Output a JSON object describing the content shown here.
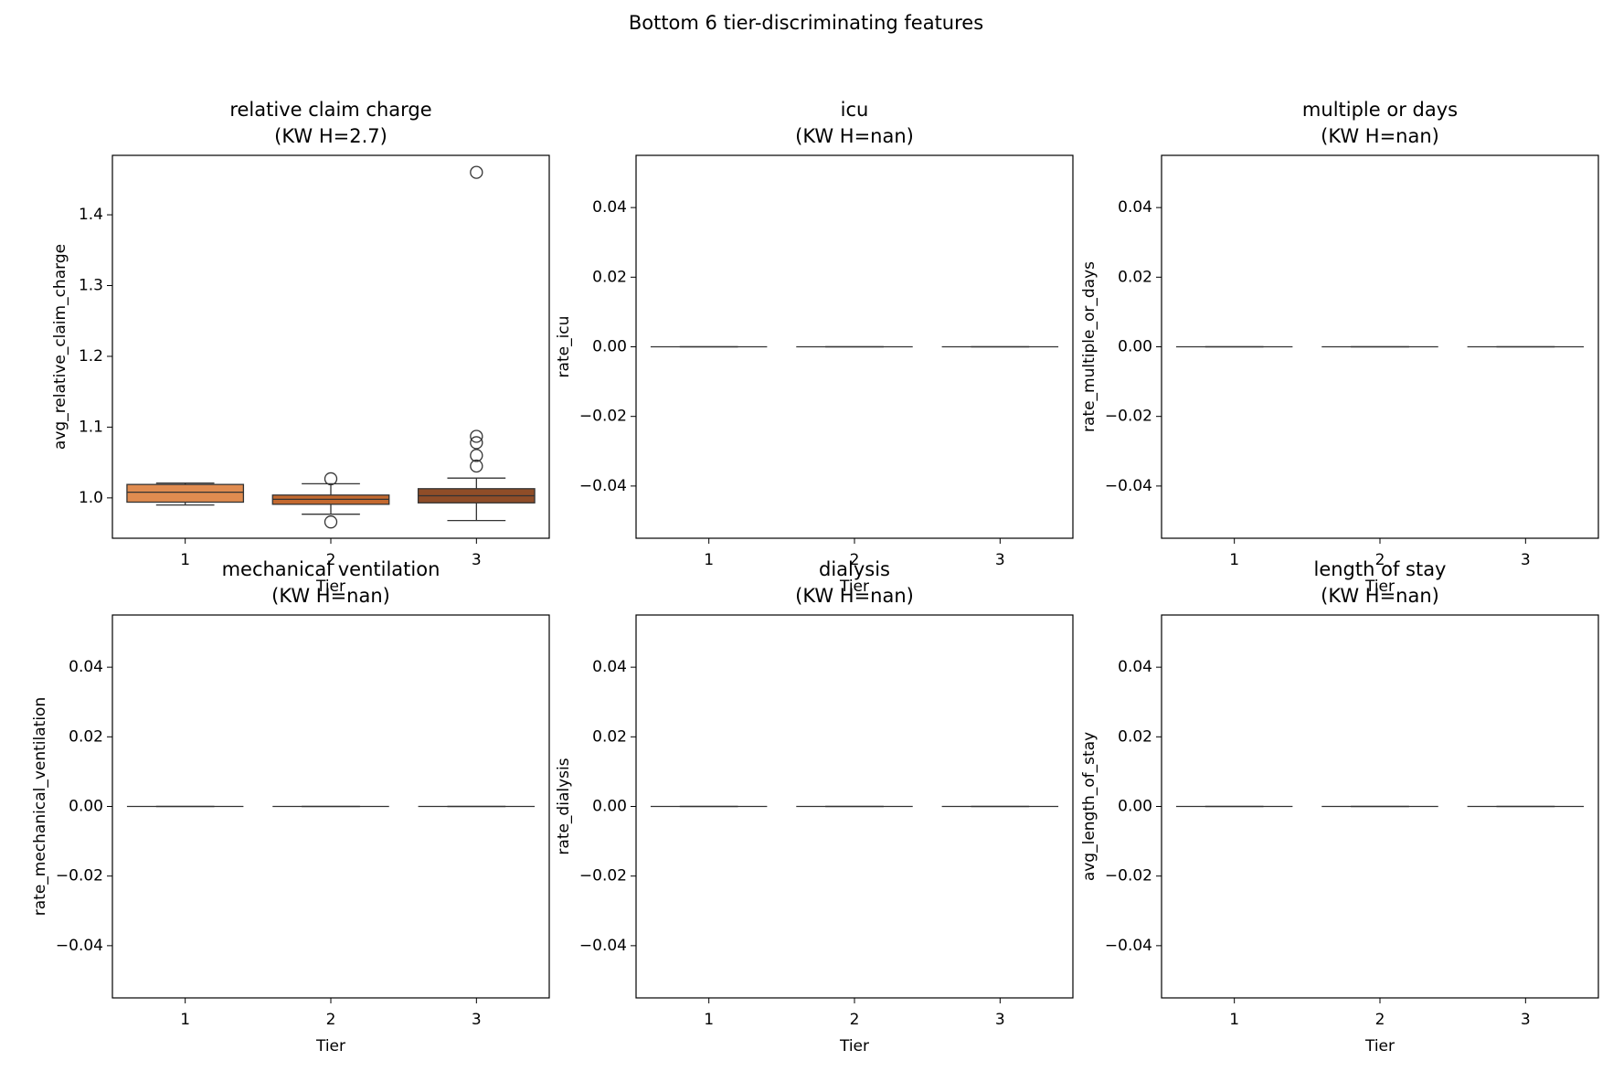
{
  "title": "Bottom 6 tier-discriminating features",
  "chart_data": [
    {
      "type": "box",
      "title": "relative claim charge",
      "subtitle": "(KW H=2.7)",
      "xlabel": "Tier",
      "ylabel": "avg_relative_claim_charge",
      "categories": [
        "1",
        "2",
        "3"
      ],
      "colors": [
        "#e08c50",
        "#c4692f",
        "#8f4d28"
      ],
      "boxes": {
        "whislo": [
          0.99,
          0.977,
          0.968
        ],
        "q1": [
          0.994,
          0.991,
          0.993
        ],
        "median": [
          1.008,
          0.998,
          1.003
        ],
        "q3": [
          1.019,
          1.004,
          1.013
        ],
        "whishi": [
          1.021,
          1.02,
          1.028
        ]
      },
      "outliers": [
        [],
        [
          1.027,
          0.966
        ],
        [
          1.46,
          1.087,
          1.078,
          1.06,
          1.045
        ]
      ],
      "ylim": [
        0.943,
        1.484
      ],
      "yticks": [
        {
          "value": 1,
          "label": "1.0"
        },
        1.1,
        1.2,
        1.3,
        1.4
      ]
    },
    {
      "type": "box",
      "title": "icu",
      "subtitle": "(KW H=nan)",
      "xlabel": "Tier",
      "ylabel": "rate_icu",
      "categories": [
        "1",
        "2",
        "3"
      ],
      "colors": [
        "#e08c50",
        "#c4692f",
        "#8f4d28"
      ],
      "boxes": {
        "whislo": [
          0,
          0,
          0
        ],
        "q1": [
          0,
          0,
          0
        ],
        "median": [
          0,
          0,
          0
        ],
        "q3": [
          0,
          0,
          0
        ],
        "whishi": [
          0,
          0,
          0
        ]
      },
      "outliers": [
        [],
        [],
        []
      ],
      "ylim": [
        -0.055,
        0.055
      ],
      "yticks": [
        {
          "value": -0.04,
          "label": "−0.04"
        },
        {
          "value": -0.02,
          "label": "−0.02"
        },
        {
          "value": 0,
          "label": "0.00"
        },
        0.02,
        0.04
      ]
    },
    {
      "type": "box",
      "title": "multiple or days",
      "subtitle": "(KW H=nan)",
      "xlabel": "Tier",
      "ylabel": "rate_multiple_or_days",
      "categories": [
        "1",
        "2",
        "3"
      ],
      "colors": [
        "#e08c50",
        "#c4692f",
        "#8f4d28"
      ],
      "boxes": {
        "whislo": [
          0,
          0,
          0
        ],
        "q1": [
          0,
          0,
          0
        ],
        "median": [
          0,
          0,
          0
        ],
        "q3": [
          0,
          0,
          0
        ],
        "whishi": [
          0,
          0,
          0
        ]
      },
      "outliers": [
        [],
        [],
        []
      ],
      "ylim": [
        -0.055,
        0.055
      ],
      "yticks": [
        {
          "value": -0.04,
          "label": "−0.04"
        },
        {
          "value": -0.02,
          "label": "−0.02"
        },
        {
          "value": 0,
          "label": "0.00"
        },
        0.02,
        0.04
      ]
    },
    {
      "type": "box",
      "title": "mechanical ventilation",
      "subtitle": "(KW H=nan)",
      "xlabel": "Tier",
      "ylabel": "rate_mechanical_ventilation",
      "categories": [
        "1",
        "2",
        "3"
      ],
      "colors": [
        "#e08c50",
        "#c4692f",
        "#8f4d28"
      ],
      "boxes": {
        "whislo": [
          0,
          0,
          0
        ],
        "q1": [
          0,
          0,
          0
        ],
        "median": [
          0,
          0,
          0
        ],
        "q3": [
          0,
          0,
          0
        ],
        "whishi": [
          0,
          0,
          0
        ]
      },
      "outliers": [
        [],
        [],
        []
      ],
      "ylim": [
        -0.055,
        0.055
      ],
      "yticks": [
        {
          "value": -0.04,
          "label": "−0.04"
        },
        {
          "value": -0.02,
          "label": "−0.02"
        },
        {
          "value": 0,
          "label": "0.00"
        },
        0.02,
        0.04
      ]
    },
    {
      "type": "box",
      "title": "dialysis",
      "subtitle": "(KW H=nan)",
      "xlabel": "Tier",
      "ylabel": "rate_dialysis",
      "categories": [
        "1",
        "2",
        "3"
      ],
      "colors": [
        "#e08c50",
        "#c4692f",
        "#8f4d28"
      ],
      "boxes": {
        "whislo": [
          0,
          0,
          0
        ],
        "q1": [
          0,
          0,
          0
        ],
        "median": [
          0,
          0,
          0
        ],
        "q3": [
          0,
          0,
          0
        ],
        "whishi": [
          0,
          0,
          0
        ]
      },
      "outliers": [
        [],
        [],
        []
      ],
      "ylim": [
        -0.055,
        0.055
      ],
      "yticks": [
        {
          "value": -0.04,
          "label": "−0.04"
        },
        {
          "value": -0.02,
          "label": "−0.02"
        },
        {
          "value": 0,
          "label": "0.00"
        },
        0.02,
        0.04
      ]
    },
    {
      "type": "box",
      "title": "length of stay",
      "subtitle": "(KW H=nan)",
      "xlabel": "Tier",
      "ylabel": "avg_length_of_stay",
      "categories": [
        "1",
        "2",
        "3"
      ],
      "colors": [
        "#e08c50",
        "#c4692f",
        "#8f4d28"
      ],
      "boxes": {
        "whislo": [
          0,
          0,
          0
        ],
        "q1": [
          0,
          0,
          0
        ],
        "median": [
          0,
          0,
          0
        ],
        "q3": [
          0,
          0,
          0
        ],
        "whishi": [
          0,
          0,
          0
        ]
      },
      "outliers": [
        [],
        [],
        []
      ],
      "ylim": [
        -0.055,
        0.055
      ],
      "yticks": [
        {
          "value": -0.04,
          "label": "−0.04"
        },
        {
          "value": -0.02,
          "label": "−0.02"
        },
        {
          "value": 0,
          "label": "0.00"
        },
        0.02,
        0.04
      ]
    }
  ]
}
